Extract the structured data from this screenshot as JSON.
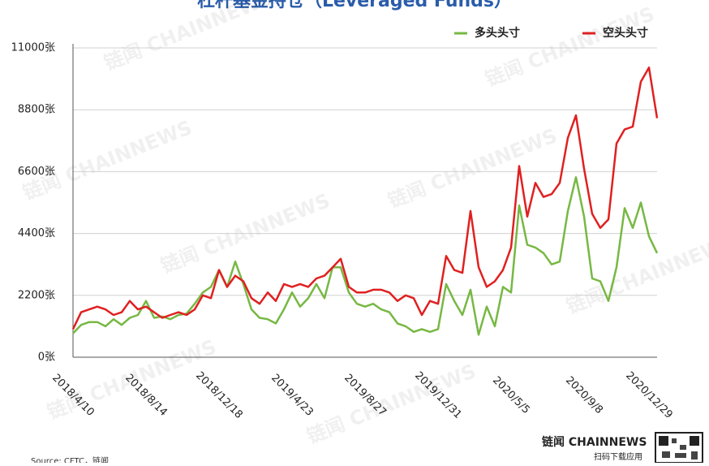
{
  "chart_data": {
    "type": "line",
    "title": "杠杆基金持仓（Leveraged Funds）",
    "source": "Source: CFTC，链闻",
    "watermark": "链闻 CHAINNEWS",
    "logo": "链闻 CHAINNEWS",
    "logo_caption": "扫码下载应用",
    "categories": [
      "2018/4/10",
      null,
      null,
      null,
      null,
      null,
      null,
      null,
      null,
      "2018/8/14",
      null,
      null,
      null,
      null,
      null,
      null,
      null,
      null,
      "2018/12/18",
      null,
      null,
      null,
      null,
      null,
      null,
      null,
      null,
      "2019/4/23",
      null,
      null,
      null,
      null,
      null,
      null,
      null,
      null,
      "2019/8/27",
      null,
      null,
      null,
      null,
      null,
      null,
      null,
      null,
      "2019/12/31",
      null,
      null,
      null,
      null,
      null,
      null,
      null,
      null,
      "2020/5/5",
      null,
      null,
      null,
      null,
      null,
      null,
      null,
      null,
      "2020/9/8",
      null,
      null,
      null,
      null,
      null,
      null,
      null,
      "2020/12/29",
      null
    ],
    "series": [
      {
        "name": "多头头寸",
        "color": "#77b843",
        "values": [
          850,
          1150,
          1250,
          1250,
          1100,
          1350,
          1150,
          1400,
          1500,
          2000,
          1400,
          1450,
          1350,
          1500,
          1550,
          1900,
          2300,
          2500,
          3100,
          2500,
          3400,
          2600,
          1700,
          1400,
          1350,
          1200,
          1700,
          2300,
          1800,
          2100,
          2600,
          2100,
          3200,
          3200,
          2300,
          1900,
          1800,
          1900,
          1700,
          1600,
          1200,
          1100,
          900,
          1000,
          900,
          1000,
          2600,
          2000,
          1500,
          2400,
          800,
          1800,
          1100,
          2500,
          2300,
          5400,
          4000,
          3900,
          3700,
          3300,
          3400,
          5200,
          6400,
          5000,
          2800,
          2700,
          2000,
          3200,
          5300,
          4600,
          5500,
          4300,
          3700
        ]
      },
      {
        "name": "空头头寸",
        "color": "#e02020",
        "values": [
          1000,
          1600,
          1700,
          1800,
          1700,
          1500,
          1600,
          2000,
          1700,
          1800,
          1600,
          1400,
          1500,
          1600,
          1500,
          1700,
          2200,
          2100,
          3100,
          2500,
          2900,
          2700,
          2100,
          1900,
          2300,
          2000,
          2600,
          2500,
          2600,
          2500,
          2800,
          2900,
          3200,
          3500,
          2500,
          2300,
          2300,
          2400,
          2400,
          2300,
          2000,
          2200,
          2100,
          1500,
          2000,
          1900,
          3600,
          3100,
          3000,
          5200,
          3200,
          2500,
          2700,
          3100,
          3900,
          6800,
          5000,
          6200,
          5700,
          5800,
          6200,
          7800,
          8600,
          6700,
          5100,
          4600,
          4900,
          7600,
          8100,
          8200,
          9800,
          10300,
          8500
        ]
      }
    ],
    "ylim": [
      0,
      11000
    ],
    "yticks": [
      {
        "value": 0,
        "label": "0张"
      },
      {
        "value": 2200,
        "label": "2200张"
      },
      {
        "value": 4400,
        "label": "4400张"
      },
      {
        "value": 6600,
        "label": "6600张"
      },
      {
        "value": 8800,
        "label": "8800张"
      },
      {
        "value": 11000,
        "label": "11000张"
      }
    ],
    "grid": true
  }
}
